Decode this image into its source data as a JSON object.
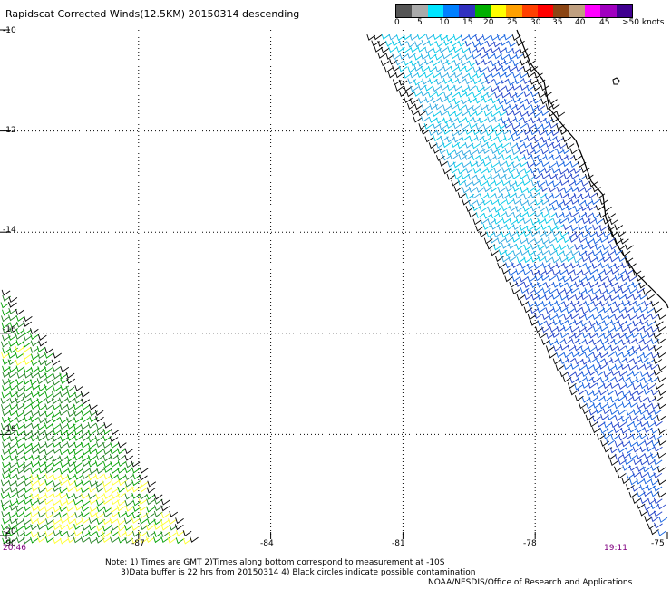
{
  "title": "Rapidscat Corrected Winds(12.5KM) 20150314 descending",
  "colorbar": {
    "colors": [
      "#555555",
      "#aaaaaa",
      "#00e5ff",
      "#0080ff",
      "#3030c0",
      "#00b000",
      "#ffff00",
      "#ffa000",
      "#ff4000",
      "#ff0000",
      "#8b4513",
      "#c0a080",
      "#ff00ff",
      "#a000c0",
      "#400090"
    ],
    "labels": [
      "0",
      "5",
      "10",
      "15",
      "20",
      "25",
      "30",
      "35",
      "40",
      "45",
      ">50 knots"
    ]
  },
  "map": {
    "lon_range": [
      -90,
      -75
    ],
    "lat_range": [
      -20,
      -10
    ],
    "lon_ticks": [
      "-90",
      "-87",
      "-84",
      "-81",
      "-78",
      "-75"
    ],
    "lat_ticks": [
      "-10",
      "-12",
      "-14",
      "-16",
      "-18",
      "-20"
    ],
    "grid": "dotted"
  },
  "times": {
    "left": "20:46",
    "right": "19:11"
  },
  "note": "Note: 1) Times are GMT 2)Times along bottom correspond to measurement at -10S\n      3)Data buffer is 22 hrs from 20150314 4) Black circles indicate possible contamination",
  "credit": "NOAA/NESDIS/Office of Research and Applications"
}
